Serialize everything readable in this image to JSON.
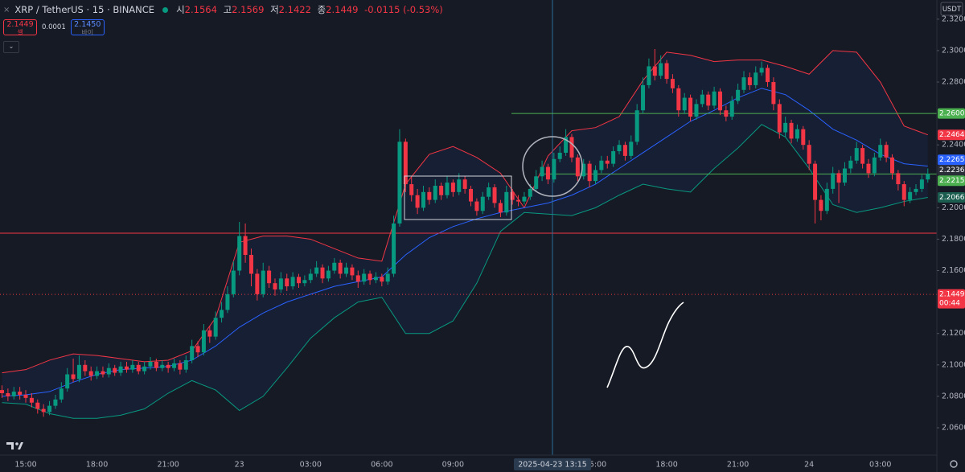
{
  "header": {
    "symbol": "XRP / TetherUS · 15 · BINANCE",
    "ohlc": [
      {
        "label": "시",
        "value": "2.1564"
      },
      {
        "label": "고",
        "value": "2.1569"
      },
      {
        "label": "저",
        "value": "2.1422"
      },
      {
        "label": "종",
        "value": "2.1449"
      }
    ],
    "change": "-0.0115 (-0.53%)",
    "sell": {
      "price": "2.1449",
      "label": "셀"
    },
    "spread": "0.0001",
    "buy": {
      "price": "2.1450",
      "label": "바이"
    },
    "currency": "USDT"
  },
  "chart_data": {
    "type": "candlestick",
    "categories": [
      null,
      null,
      null,
      null,
      "15:00",
      null,
      null,
      null,
      null,
      null,
      null,
      null,
      null,
      null,
      null,
      null,
      "18:00",
      null,
      null,
      null,
      null,
      null,
      null,
      null,
      null,
      null,
      null,
      null,
      "21:00",
      null,
      null,
      null,
      null,
      null,
      null,
      null,
      null,
      null,
      null,
      null,
      "23",
      null,
      null,
      null,
      null,
      null,
      null,
      null,
      null,
      null,
      null,
      null,
      "03:00",
      null,
      null,
      null,
      null,
      null,
      null,
      null,
      null,
      null,
      null,
      null,
      "06:00",
      null,
      null,
      null,
      null,
      null,
      null,
      null,
      null,
      null,
      null,
      null,
      "09:00",
      null,
      null,
      null,
      null,
      null,
      null,
      null,
      null,
      null,
      null,
      null,
      null,
      null,
      null,
      null,
      null,
      null,
      null,
      null,
      null,
      null,
      null,
      null,
      "15:00",
      null,
      null,
      null,
      null,
      null,
      null,
      null,
      null,
      null,
      null,
      null,
      "18:00",
      null,
      null,
      null,
      null,
      null,
      null,
      null,
      null,
      null,
      null,
      null,
      "21:00",
      null,
      null,
      null,
      null,
      null,
      null,
      null,
      null,
      null,
      null,
      null,
      "24",
      null,
      null,
      null,
      null,
      null,
      null,
      null,
      null,
      null,
      null,
      null,
      "03:00",
      null,
      null,
      null,
      null,
      null,
      null,
      null,
      null
    ],
    "open": [
      2.084,
      2.082,
      2.08,
      2.083,
      2.081,
      2.079,
      2.076,
      2.072,
      2.07,
      2.074,
      2.078,
      2.085,
      2.094,
      2.091,
      2.1,
      2.096,
      2.093,
      2.096,
      2.094,
      2.098,
      2.095,
      2.099,
      2.097,
      2.1,
      2.096,
      2.099,
      2.102,
      2.098,
      2.1,
      2.098,
      2.101,
      2.097,
      2.103,
      2.112,
      2.108,
      2.122,
      2.118,
      2.13,
      2.135,
      2.145,
      2.16,
      2.182,
      2.17,
      2.158,
      2.145,
      2.16,
      2.152,
      2.148,
      2.155,
      2.15,
      2.156,
      2.152,
      2.154,
      2.158,
      2.162,
      2.155,
      2.16,
      2.165,
      2.158,
      2.162,
      2.157,
      2.153,
      2.158,
      2.154,
      2.156,
      2.153,
      2.158,
      2.19,
      2.242,
      2.215,
      2.208,
      2.2,
      2.21,
      2.205,
      2.214,
      2.208,
      2.216,
      2.21,
      2.218,
      2.212,
      2.204,
      2.198,
      2.207,
      2.213,
      2.203,
      2.197,
      2.21,
      2.205,
      2.204,
      2.207,
      2.212,
      2.22,
      2.226,
      2.218,
      2.231,
      2.235,
      2.245,
      2.232,
      2.22,
      2.228,
      2.217,
      2.224,
      2.23,
      2.228,
      2.236,
      2.24,
      2.233,
      2.242,
      2.262,
      2.278,
      2.29,
      2.284,
      2.292,
      2.282,
      2.276,
      2.262,
      2.27,
      2.258,
      2.266,
      2.272,
      2.265,
      2.274,
      2.262,
      2.258,
      2.268,
      2.275,
      2.283,
      2.278,
      2.286,
      2.289,
      2.28,
      2.266,
      2.248,
      2.254,
      2.244,
      2.25,
      2.24,
      2.228,
      2.205,
      2.198,
      2.212,
      2.222,
      2.216,
      2.225,
      2.23,
      2.238,
      2.228,
      2.222,
      2.232,
      2.24,
      2.232,
      2.222,
      2.215,
      2.205,
      2.21,
      2.212,
      2.218
    ],
    "high": [
      2.087,
      2.085,
      2.086,
      2.086,
      2.084,
      2.082,
      2.078,
      2.075,
      2.077,
      2.081,
      2.089,
      2.098,
      2.104,
      2.106,
      2.103,
      2.099,
      2.099,
      2.099,
      2.101,
      2.1,
      2.102,
      2.102,
      2.103,
      2.102,
      2.102,
      2.105,
      2.104,
      2.103,
      2.102,
      2.104,
      2.103,
      2.106,
      2.116,
      2.115,
      2.126,
      2.125,
      2.134,
      2.14,
      2.15,
      2.166,
      2.191,
      2.19,
      2.174,
      2.161,
      2.165,
      2.163,
      2.155,
      2.159,
      2.158,
      2.159,
      2.158,
      2.157,
      2.161,
      2.166,
      2.164,
      2.163,
      2.168,
      2.167,
      2.165,
      2.164,
      2.16,
      2.161,
      2.16,
      2.159,
      2.158,
      2.162,
      2.195,
      2.25,
      2.244,
      2.22,
      2.212,
      2.214,
      2.213,
      2.218,
      2.216,
      2.22,
      2.218,
      2.222,
      2.22,
      2.214,
      2.206,
      2.21,
      2.216,
      2.215,
      2.205,
      2.214,
      2.212,
      2.208,
      2.21,
      2.215,
      2.224,
      2.23,
      2.228,
      2.235,
      2.239,
      2.25,
      2.247,
      2.234,
      2.231,
      2.23,
      2.227,
      2.233,
      2.233,
      2.239,
      2.243,
      2.242,
      2.246,
      2.266,
      2.283,
      2.295,
      2.301,
      2.297,
      2.294,
      2.285,
      2.278,
      2.273,
      2.272,
      2.269,
      2.275,
      2.274,
      2.277,
      2.276,
      2.265,
      2.271,
      2.279,
      2.287,
      2.286,
      2.29,
      2.293,
      2.291,
      2.283,
      2.269,
      2.258,
      2.256,
      2.253,
      2.252,
      2.243,
      2.23,
      2.208,
      2.216,
      2.226,
      2.224,
      2.229,
      2.233,
      2.242,
      2.24,
      2.231,
      2.235,
      2.244,
      2.242,
      2.234,
      2.224,
      2.217,
      2.213,
      2.215,
      2.221,
      2.225
    ],
    "low": [
      2.079,
      2.077,
      2.078,
      2.078,
      2.076,
      2.073,
      2.069,
      2.067,
      2.068,
      2.072,
      2.076,
      2.083,
      2.089,
      2.089,
      2.093,
      2.09,
      2.091,
      2.092,
      2.092,
      2.093,
      2.093,
      2.095,
      2.095,
      2.094,
      2.094,
      2.097,
      2.096,
      2.096,
      2.095,
      2.096,
      2.094,
      2.095,
      2.101,
      2.105,
      2.106,
      2.114,
      2.116,
      2.127,
      2.133,
      2.143,
      2.157,
      2.165,
      2.15,
      2.141,
      2.143,
      2.149,
      2.144,
      2.146,
      2.147,
      2.148,
      2.149,
      2.15,
      2.152,
      2.156,
      2.152,
      2.153,
      2.158,
      2.155,
      2.156,
      2.154,
      2.149,
      2.151,
      2.151,
      2.152,
      2.15,
      2.151,
      2.156,
      2.188,
      2.21,
      2.204,
      2.196,
      2.198,
      2.202,
      2.203,
      2.205,
      2.206,
      2.207,
      2.208,
      2.209,
      2.201,
      2.195,
      2.196,
      2.205,
      2.2,
      2.194,
      2.195,
      2.202,
      2.201,
      2.202,
      2.205,
      2.21,
      2.217,
      2.215,
      2.216,
      2.229,
      2.233,
      2.229,
      2.217,
      2.218,
      2.213,
      2.215,
      2.222,
      2.225,
      2.226,
      2.234,
      2.23,
      2.231,
      2.24,
      2.26,
      2.276,
      2.281,
      2.282,
      2.279,
      2.273,
      2.258,
      2.26,
      2.255,
      2.256,
      2.264,
      2.262,
      2.263,
      2.259,
      2.255,
      2.256,
      2.266,
      2.273,
      2.275,
      2.276,
      2.284,
      2.277,
      2.262,
      2.244,
      2.245,
      2.241,
      2.242,
      2.237,
      2.224,
      2.19,
      2.192,
      2.196,
      2.209,
      2.203,
      2.214,
      2.222,
      2.228,
      2.225,
      2.219,
      2.22,
      2.23,
      2.229,
      2.218,
      2.211,
      2.201,
      2.203,
      2.208,
      2.21,
      2.216
    ],
    "close": [
      2.082,
      2.08,
      2.083,
      2.081,
      2.079,
      2.076,
      2.072,
      2.07,
      2.074,
      2.078,
      2.085,
      2.094,
      2.091,
      2.1,
      2.096,
      2.093,
      2.096,
      2.094,
      2.098,
      2.095,
      2.099,
      2.097,
      2.1,
      2.096,
      2.099,
      2.102,
      2.098,
      2.1,
      2.098,
      2.101,
      2.097,
      2.103,
      2.112,
      2.108,
      2.122,
      2.118,
      2.13,
      2.135,
      2.145,
      2.16,
      2.182,
      2.17,
      2.158,
      2.145,
      2.16,
      2.152,
      2.148,
      2.155,
      2.15,
      2.156,
      2.152,
      2.154,
      2.158,
      2.162,
      2.155,
      2.16,
      2.165,
      2.158,
      2.162,
      2.157,
      2.153,
      2.158,
      2.154,
      2.156,
      2.153,
      2.158,
      2.19,
      2.242,
      2.215,
      2.208,
      2.2,
      2.21,
      2.205,
      2.214,
      2.208,
      2.216,
      2.21,
      2.218,
      2.212,
      2.204,
      2.198,
      2.207,
      2.213,
      2.203,
      2.197,
      2.21,
      2.205,
      2.204,
      2.207,
      2.212,
      2.22,
      2.226,
      2.218,
      2.231,
      2.235,
      2.245,
      2.232,
      2.22,
      2.228,
      2.217,
      2.224,
      2.23,
      2.228,
      2.236,
      2.24,
      2.233,
      2.242,
      2.262,
      2.278,
      2.29,
      2.284,
      2.292,
      2.282,
      2.276,
      2.262,
      2.27,
      2.258,
      2.266,
      2.272,
      2.265,
      2.274,
      2.262,
      2.258,
      2.268,
      2.275,
      2.283,
      2.278,
      2.286,
      2.289,
      2.28,
      2.266,
      2.248,
      2.254,
      2.244,
      2.25,
      2.24,
      2.228,
      2.205,
      2.198,
      2.212,
      2.222,
      2.216,
      2.225,
      2.23,
      2.238,
      2.228,
      2.222,
      2.232,
      2.24,
      2.232,
      2.222,
      2.215,
      2.205,
      2.21,
      2.212,
      2.218,
      2.2215
    ],
    "up_color": "#089981",
    "down_color": "#f23645",
    "bands": {
      "x": [
        0,
        4,
        8,
        12,
        16,
        20,
        24,
        28,
        32,
        36,
        40,
        44,
        48,
        52,
        56,
        60,
        64,
        68,
        72,
        76,
        80,
        84,
        88,
        92,
        96,
        100,
        104,
        108,
        112,
        116,
        120,
        124,
        128,
        132,
        136,
        140,
        144,
        148,
        152,
        156
      ],
      "upper": [
        2.095,
        2.097,
        2.103,
        2.107,
        2.106,
        2.104,
        2.102,
        2.103,
        2.109,
        2.13,
        2.178,
        2.182,
        2.182,
        2.18,
        2.174,
        2.168,
        2.166,
        2.215,
        2.234,
        2.239,
        2.232,
        2.222,
        2.2,
        2.233,
        2.249,
        2.251,
        2.258,
        2.281,
        2.299,
        2.297,
        2.293,
        2.294,
        2.294,
        2.29,
        2.285,
        2.3,
        2.299,
        2.28,
        2.252,
        2.2464
      ],
      "middle": [
        2.08,
        2.081,
        2.083,
        2.089,
        2.094,
        2.097,
        2.098,
        2.099,
        2.103,
        2.112,
        2.124,
        2.133,
        2.14,
        2.145,
        2.15,
        2.153,
        2.156,
        2.17,
        2.181,
        2.188,
        2.193,
        2.197,
        2.2,
        2.203,
        2.208,
        2.215,
        2.225,
        2.235,
        2.245,
        2.255,
        2.262,
        2.27,
        2.276,
        2.272,
        2.262,
        2.25,
        2.243,
        2.234,
        2.228,
        2.2265
      ],
      "lower": [
        2.076,
        2.075,
        2.069,
        2.066,
        2.066,
        2.068,
        2.072,
        2.082,
        2.09,
        2.084,
        2.071,
        2.08,
        2.098,
        2.117,
        2.13,
        2.14,
        2.143,
        2.12,
        2.12,
        2.128,
        2.152,
        2.185,
        2.197,
        2.196,
        2.195,
        2.2,
        2.208,
        2.215,
        2.212,
        2.21,
        2.225,
        2.238,
        2.253,
        2.245,
        2.225,
        2.202,
        2.197,
        2.2,
        2.204,
        2.2066
      ],
      "upper_color": "#f23645",
      "middle_color": "#2962ff",
      "lower_color": "#089981"
    },
    "ylim": [
      2.0426,
      2.3322
    ],
    "yticks": [
      {
        "value": 2.32,
        "label": "2.3200"
      },
      {
        "value": 2.3,
        "label": "2.3000"
      },
      {
        "value": 2.28,
        "label": "2.2800"
      },
      {
        "value": 2.24,
        "label": "2.2400"
      },
      {
        "value": 2.2,
        "label": "2.2000"
      },
      {
        "value": 2.18,
        "label": "2.1800"
      },
      {
        "value": 2.16,
        "label": "2.1600"
      },
      {
        "value": 2.12,
        "label": "2.1200"
      },
      {
        "value": 2.1,
        "label": "2.1000"
      },
      {
        "value": 2.08,
        "label": "2.0800"
      },
      {
        "value": 2.06,
        "label": "2.0600"
      }
    ],
    "price_tags": [
      {
        "value": 2.26,
        "label": "2.2600",
        "color": "#4caf50",
        "line": "solid"
      },
      {
        "value": 2.2464,
        "color": "#f23645"
      },
      {
        "value": 2.2265,
        "color": "#2962ff"
      },
      {
        "value": 2.2236,
        "color": "#2a2e39"
      },
      {
        "value": 2.2215,
        "color": "#4caf50",
        "line": "solid"
      },
      {
        "value": 2.2066,
        "color": "#1b5e4f"
      },
      {
        "value": 2.1449,
        "color": "#f23645",
        "line": "dotted",
        "countdown": "00:44"
      }
    ],
    "crosshair_label": "2025-04-23   13:15"
  }
}
